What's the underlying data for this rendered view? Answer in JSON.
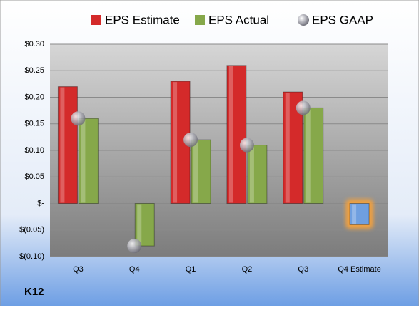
{
  "chart_data": {
    "type": "bar",
    "title": "K12",
    "categories": [
      "Q3",
      "Q4",
      "Q1",
      "Q2",
      "Q3",
      "Q4 Estimate"
    ],
    "series": [
      {
        "name": "EPS Estimate",
        "color": "#d42a2a",
        "values": [
          0.22,
          null,
          0.23,
          0.26,
          0.21,
          -0.04
        ]
      },
      {
        "name": "EPS Actual",
        "color": "#86a84a",
        "values": [
          0.16,
          -0.08,
          0.12,
          0.11,
          0.18,
          null
        ]
      },
      {
        "name": "EPS GAAP",
        "color": "#b8b8c0",
        "marker": "sphere",
        "values": [
          0.16,
          -0.08,
          0.12,
          0.11,
          0.18,
          null
        ]
      }
    ],
    "highlight": {
      "series": 0,
      "index": 5,
      "color": "#6f9fe0"
    },
    "ylim": [
      -0.1,
      0.3
    ],
    "yticks": [
      {
        "value": -0.1,
        "label": "$(0.10)"
      },
      {
        "value": -0.05,
        "label": "$(0.05)"
      },
      {
        "value": 0,
        "label": "$-"
      },
      {
        "value": 0.05,
        "label": "$0.05"
      },
      {
        "value": 0.1,
        "label": "$0.10"
      },
      {
        "value": 0.15,
        "label": "$0.15"
      },
      {
        "value": 0.2,
        "label": "$0.20"
      },
      {
        "value": 0.25,
        "label": "$0.25"
      },
      {
        "value": 0.3,
        "label": "$0.30"
      }
    ],
    "grid": true
  }
}
